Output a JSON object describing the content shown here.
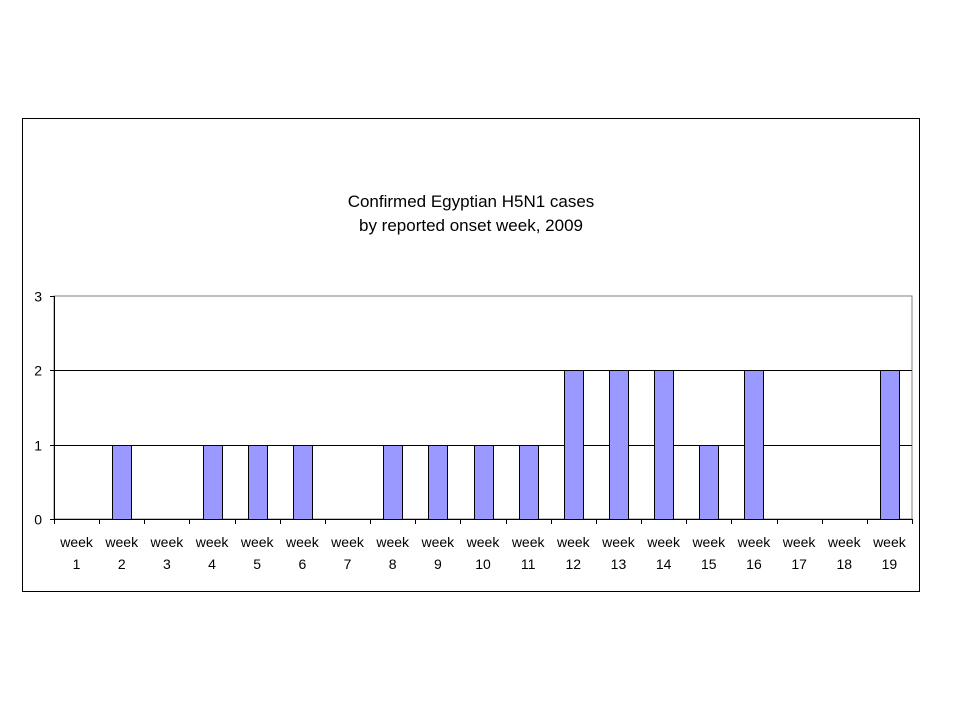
{
  "chart_data": {
    "type": "bar",
    "title_lines": [
      "Confirmed Egyptian H5N1 cases",
      "by reported onset week, 2009"
    ],
    "categories": [
      [
        "week",
        "1"
      ],
      [
        "week",
        "2"
      ],
      [
        "week",
        "3"
      ],
      [
        "week",
        "4"
      ],
      [
        "week",
        "5"
      ],
      [
        "week",
        "6"
      ],
      [
        "week",
        "7"
      ],
      [
        "week",
        "8"
      ],
      [
        "week",
        "9"
      ],
      [
        "week",
        "10"
      ],
      [
        "week",
        "11"
      ],
      [
        "week",
        "12"
      ],
      [
        "week",
        "13"
      ],
      [
        "week",
        "14"
      ],
      [
        "week",
        "15"
      ],
      [
        "week",
        "16"
      ],
      [
        "week",
        "17"
      ],
      [
        "week",
        "18"
      ],
      [
        "week",
        "19"
      ]
    ],
    "values": [
      0,
      1,
      0,
      1,
      1,
      1,
      0,
      1,
      1,
      1,
      1,
      2,
      2,
      2,
      1,
      2,
      0,
      0,
      2
    ],
    "ylim": [
      0,
      3
    ],
    "yticks": [
      "0",
      "1",
      "2",
      "3"
    ],
    "xlabel": "",
    "ylabel": "",
    "grid": true,
    "legend": "none",
    "colors": {
      "bar_fill": "#9999ff",
      "bar_stroke": "#000000",
      "gridline": "#000000",
      "axis": "#000000",
      "text": "#000000"
    }
  }
}
